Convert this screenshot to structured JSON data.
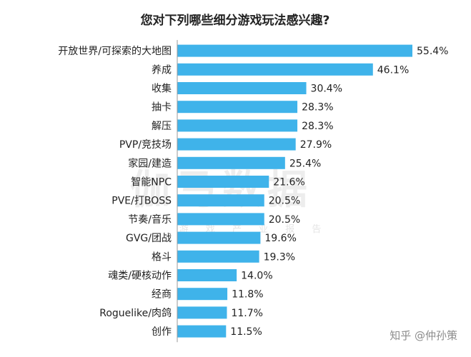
{
  "chart_data": {
    "type": "bar",
    "orientation": "horizontal",
    "title": "您对下列哪些细分游戏玩法感兴趣?",
    "categories": [
      "开放世界/可探索的大地图",
      "养成",
      "收集",
      "抽卡",
      "解压",
      "PVP/竞技场",
      "家园/建造",
      "智能NPC",
      "PVE/打BOSS",
      "节奏/音乐",
      "GVG/团战",
      "格斗",
      "魂类/硬核动作",
      "经商",
      "Roguelike/肉鸽",
      "创作"
    ],
    "values": [
      55.4,
      46.1,
      30.4,
      28.3,
      28.3,
      27.9,
      25.4,
      21.6,
      20.5,
      20.5,
      19.6,
      19.3,
      14.0,
      11.8,
      11.7,
      11.5
    ],
    "value_labels": [
      "55.4%",
      "46.1%",
      "30.4%",
      "28.3%",
      "28.3%",
      "27.9%",
      "25.4%",
      "21.6%",
      "20.5%",
      "20.5%",
      "19.6%",
      "19.3%",
      "14.0%",
      "11.8%",
      "11.7%",
      "11.5%"
    ],
    "xlim": [
      0,
      60
    ],
    "bar_color": "#3fb3ea",
    "axis_color": "#9a9a9a",
    "grid": false,
    "legend": "none"
  },
  "watermark": {
    "main": "伽马数据",
    "sub": "游 戏 产 业 报 告",
    "credit": "知乎 @仲孙策"
  }
}
